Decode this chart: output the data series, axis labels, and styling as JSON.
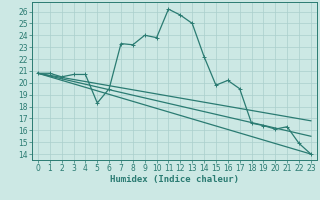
{
  "xlabel": "Humidex (Indice chaleur)",
  "bg_color": "#cce8e4",
  "grid_color": "#aacfcc",
  "line_color": "#2a7b72",
  "xlim": [
    -0.5,
    23.5
  ],
  "ylim": [
    13.5,
    26.8
  ],
  "yticks": [
    14,
    15,
    16,
    17,
    18,
    19,
    20,
    21,
    22,
    23,
    24,
    25,
    26
  ],
  "xticks": [
    0,
    1,
    2,
    3,
    4,
    5,
    6,
    7,
    8,
    9,
    10,
    11,
    12,
    13,
    14,
    15,
    16,
    17,
    18,
    19,
    20,
    21,
    22,
    23
  ],
  "curve1_x": [
    0,
    1,
    2,
    3,
    4,
    5,
    6,
    7,
    8,
    9,
    10,
    11,
    12,
    13,
    14,
    15,
    16,
    17,
    18,
    19,
    20,
    21,
    22,
    23
  ],
  "curve1_y": [
    20.8,
    20.8,
    20.5,
    20.7,
    20.7,
    18.3,
    19.5,
    23.3,
    23.2,
    24.0,
    23.8,
    26.2,
    25.7,
    25.0,
    22.2,
    19.8,
    20.2,
    19.5,
    16.6,
    16.4,
    16.1,
    16.3,
    14.9,
    14.0
  ],
  "curve2_x": [
    0,
    23
  ],
  "curve2_y": [
    20.8,
    14.0
  ],
  "curve3_x": [
    0,
    23
  ],
  "curve3_y": [
    20.8,
    15.5
  ],
  "curve4_x": [
    0,
    23
  ],
  "curve4_y": [
    20.8,
    16.8
  ],
  "xlabel_fontsize": 6.5,
  "tick_fontsize": 5.5,
  "linewidth": 0.9
}
